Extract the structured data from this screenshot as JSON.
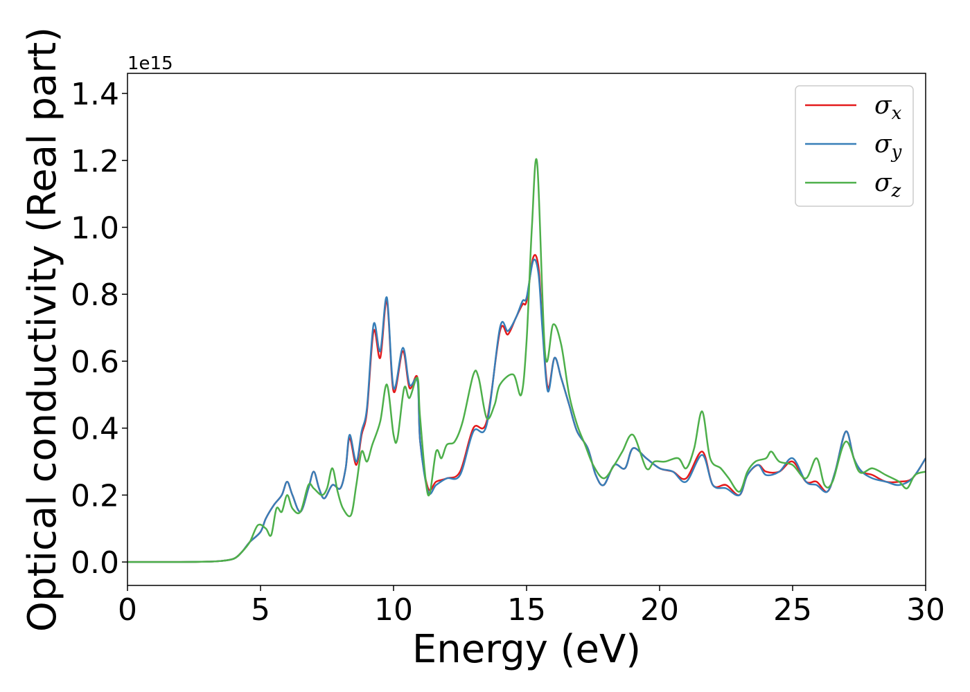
{
  "chart_data": {
    "type": "line",
    "xlabel": "Energy (eV)",
    "ylabel": "Optical conductivity (Real part)",
    "y_offset_text": "1e15",
    "xlim": [
      0,
      30
    ],
    "ylim": [
      -0.07,
      1.46
    ],
    "x_ticks": [
      0,
      5,
      10,
      15,
      20,
      25,
      30
    ],
    "y_ticks": [
      0.0,
      0.2,
      0.4,
      0.6,
      0.8,
      1.0,
      1.2,
      1.4
    ],
    "x_tick_labels": [
      "0",
      "5",
      "10",
      "15",
      "20",
      "25",
      "30"
    ],
    "y_tick_labels": [
      "0.0",
      "0.2",
      "0.4",
      "0.6",
      "0.8",
      "1.0",
      "1.2",
      "1.4"
    ],
    "grid": false,
    "legend_position": "top-right",
    "legend": [
      {
        "symbol": "σ",
        "subscript": "x",
        "color": "#e41a1c"
      },
      {
        "symbol": "σ",
        "subscript": "y",
        "color": "#377eb8"
      },
      {
        "symbol": "σ",
        "subscript": "z",
        "color": "#4daf4a"
      }
    ],
    "series": [
      {
        "color": "#e41a1c",
        "x": [
          0,
          2,
          3,
          3.5,
          4,
          4.3,
          4.6,
          5,
          5.2,
          5.5,
          5.8,
          6.0,
          6.2,
          6.5,
          6.8,
          7.0,
          7.2,
          7.4,
          7.7,
          8.0,
          8.2,
          8.35,
          8.6,
          8.8,
          9.0,
          9.25,
          9.5,
          9.75,
          10.0,
          10.35,
          10.6,
          10.9,
          11.0,
          11.3,
          11.6,
          12.0,
          12.5,
          13.0,
          13.5,
          14.0,
          14.3,
          14.6,
          14.85,
          15.0,
          15.25,
          15.45,
          15.6,
          15.8,
          16.05,
          16.3,
          16.6,
          16.9,
          17.3,
          17.6,
          17.9,
          18.3,
          18.7,
          19.0,
          19.5,
          20.0,
          20.5,
          21.0,
          21.6,
          22.0,
          22.5,
          23.0,
          23.3,
          23.7,
          24.0,
          24.5,
          25.0,
          25.5,
          25.9,
          26.3,
          26.6,
          27.0,
          27.3,
          27.6,
          28.0,
          28.5,
          29.0,
          29.5,
          30.0
        ],
        "y": [
          0,
          0,
          0.001,
          0.003,
          0.01,
          0.03,
          0.06,
          0.09,
          0.13,
          0.17,
          0.2,
          0.24,
          0.2,
          0.15,
          0.22,
          0.27,
          0.22,
          0.19,
          0.23,
          0.22,
          0.28,
          0.37,
          0.29,
          0.38,
          0.45,
          0.69,
          0.61,
          0.78,
          0.51,
          0.63,
          0.52,
          0.55,
          0.36,
          0.22,
          0.24,
          0.25,
          0.27,
          0.4,
          0.42,
          0.69,
          0.68,
          0.73,
          0.77,
          0.78,
          0.91,
          0.88,
          0.7,
          0.52,
          0.61,
          0.55,
          0.47,
          0.39,
          0.34,
          0.26,
          0.23,
          0.29,
          0.28,
          0.34,
          0.31,
          0.28,
          0.27,
          0.25,
          0.33,
          0.23,
          0.23,
          0.2,
          0.26,
          0.29,
          0.27,
          0.27,
          0.3,
          0.24,
          0.24,
          0.21,
          0.27,
          0.39,
          0.31,
          0.27,
          0.26,
          0.24,
          0.24,
          0.25,
          0.31
        ]
      },
      {
        "color": "#377eb8",
        "x": [
          0,
          2,
          3,
          3.5,
          4,
          4.3,
          4.6,
          5,
          5.2,
          5.5,
          5.8,
          6.0,
          6.2,
          6.5,
          6.8,
          7.0,
          7.2,
          7.4,
          7.7,
          8.0,
          8.2,
          8.35,
          8.6,
          8.8,
          9.0,
          9.25,
          9.5,
          9.75,
          10.0,
          10.35,
          10.6,
          10.9,
          11.0,
          11.3,
          11.6,
          12.0,
          12.5,
          13.0,
          13.5,
          14.0,
          14.3,
          14.6,
          14.85,
          15.0,
          15.25,
          15.45,
          15.6,
          15.8,
          16.05,
          16.3,
          16.6,
          16.9,
          17.3,
          17.6,
          17.9,
          18.3,
          18.7,
          19.0,
          19.5,
          20.0,
          20.5,
          21.0,
          21.6,
          22.0,
          22.5,
          23.0,
          23.3,
          23.7,
          24.0,
          24.5,
          25.0,
          25.5,
          25.9,
          26.3,
          26.6,
          27.0,
          27.3,
          27.6,
          28.0,
          28.5,
          29.0,
          29.5,
          30.0
        ],
        "y": [
          0,
          0,
          0.001,
          0.003,
          0.01,
          0.03,
          0.06,
          0.09,
          0.13,
          0.17,
          0.2,
          0.24,
          0.2,
          0.15,
          0.22,
          0.27,
          0.22,
          0.19,
          0.23,
          0.22,
          0.28,
          0.38,
          0.3,
          0.39,
          0.46,
          0.71,
          0.63,
          0.79,
          0.52,
          0.64,
          0.53,
          0.54,
          0.36,
          0.21,
          0.23,
          0.25,
          0.26,
          0.39,
          0.41,
          0.7,
          0.69,
          0.73,
          0.78,
          0.79,
          0.9,
          0.86,
          0.69,
          0.51,
          0.61,
          0.55,
          0.47,
          0.39,
          0.34,
          0.26,
          0.23,
          0.29,
          0.28,
          0.34,
          0.31,
          0.28,
          0.27,
          0.24,
          0.32,
          0.23,
          0.22,
          0.2,
          0.26,
          0.29,
          0.26,
          0.27,
          0.31,
          0.24,
          0.23,
          0.21,
          0.27,
          0.39,
          0.31,
          0.27,
          0.25,
          0.24,
          0.23,
          0.25,
          0.31
        ]
      },
      {
        "color": "#4daf4a",
        "x": [
          0,
          2,
          3,
          3.5,
          4,
          4.3,
          4.6,
          4.9,
          5.2,
          5.4,
          5.6,
          5.8,
          6.0,
          6.2,
          6.5,
          6.8,
          7.0,
          7.3,
          7.5,
          7.7,
          7.9,
          8.1,
          8.4,
          8.6,
          8.8,
          9.0,
          9.2,
          9.5,
          9.75,
          10.0,
          10.15,
          10.4,
          10.6,
          10.9,
          11.0,
          11.3,
          11.6,
          11.8,
          12.0,
          12.3,
          12.6,
          13.0,
          13.2,
          13.5,
          13.8,
          14.0,
          14.5,
          14.8,
          15.0,
          15.2,
          15.4,
          15.7,
          16.0,
          16.3,
          16.6,
          16.9,
          17.2,
          17.5,
          17.9,
          18.3,
          18.6,
          19.0,
          19.5,
          19.8,
          20.2,
          20.7,
          21.0,
          21.3,
          21.6,
          21.9,
          22.3,
          22.6,
          23.0,
          23.3,
          23.6,
          24.0,
          24.2,
          24.5,
          25.0,
          25.5,
          25.9,
          26.2,
          26.5,
          27.0,
          27.5,
          28.0,
          28.5,
          29.0,
          29.3,
          29.6,
          30.0
        ],
        "y": [
          0,
          0,
          0.001,
          0.003,
          0.01,
          0.03,
          0.06,
          0.11,
          0.1,
          0.08,
          0.16,
          0.15,
          0.2,
          0.16,
          0.15,
          0.23,
          0.22,
          0.2,
          0.22,
          0.28,
          0.21,
          0.16,
          0.14,
          0.23,
          0.33,
          0.3,
          0.35,
          0.42,
          0.53,
          0.38,
          0.37,
          0.52,
          0.49,
          0.55,
          0.43,
          0.2,
          0.33,
          0.31,
          0.35,
          0.36,
          0.42,
          0.56,
          0.55,
          0.43,
          0.47,
          0.53,
          0.56,
          0.5,
          0.66,
          1.0,
          1.19,
          0.62,
          0.71,
          0.65,
          0.5,
          0.41,
          0.35,
          0.29,
          0.25,
          0.29,
          0.33,
          0.38,
          0.28,
          0.3,
          0.3,
          0.31,
          0.28,
          0.34,
          0.45,
          0.31,
          0.28,
          0.25,
          0.21,
          0.27,
          0.3,
          0.31,
          0.33,
          0.3,
          0.29,
          0.25,
          0.31,
          0.23,
          0.24,
          0.36,
          0.27,
          0.28,
          0.26,
          0.24,
          0.22,
          0.26,
          0.27
        ]
      }
    ]
  }
}
